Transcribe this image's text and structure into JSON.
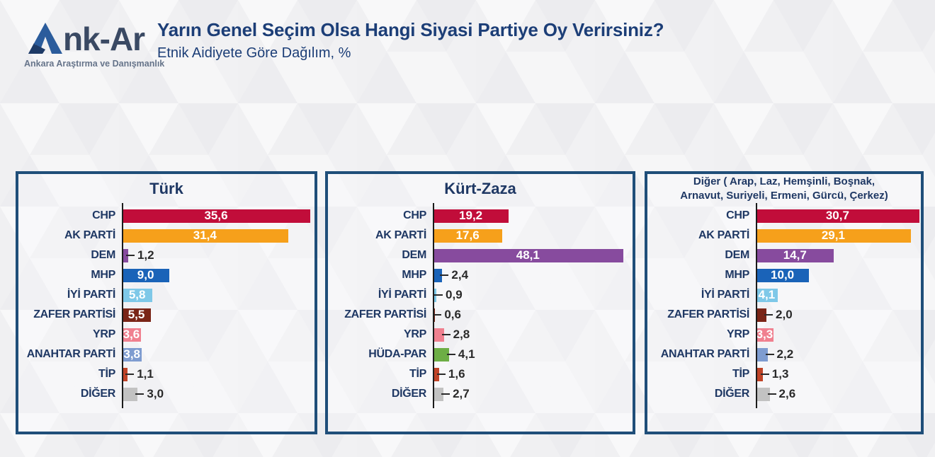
{
  "header": {
    "logo_text_rest": "nk-Ar",
    "logo_tagline": "Ankara Araştırma ve Danışmanlık",
    "title": "Yarın Genel Seçim Olsa Hangi Siyasi Partiye Oy Verirsiniz?",
    "subtitle": "Etnik Aidiyete Göre Dağılım, %"
  },
  "colors": {
    "background": "#F0F0F2",
    "panel_border": "#1F4E79",
    "title_text": "#1C3E77",
    "category_text": "#1F3864",
    "axis_line": "#1B1B1B",
    "inside_value_text": "#FFFFFF",
    "outside_value_text": "#2A2A2A",
    "parties": {
      "CHP": "#C10D3A",
      "AK PARTİ": "#F6A01B",
      "DEM": "#874B9E",
      "MHP": "#1A63B8",
      "İYİ PARTİ": "#7EC8E8",
      "ZAFER PARTİSİ": "#7A2517",
      "YRP": "#F0808F",
      "ANAHTAR PARTİ": "#7E9CD0",
      "HÜDA-PAR": "#6DAE45",
      "TİP": "#C04327",
      "DİĞER": "#C2C2C2"
    }
  },
  "chart_data": [
    {
      "type": "bar",
      "orientation": "horizontal",
      "title": "Türk",
      "title_lines": [
        "Türk"
      ],
      "unit": "%",
      "decimal_separator": ",",
      "categories": [
        "CHP",
        "AK PARTİ",
        "DEM",
        "MHP",
        "İYİ PARTİ",
        "ZAFER PARTİSİ",
        "YRP",
        "ANAHTAR PARTİ",
        "TİP",
        "DİĞER"
      ],
      "values": [
        35.6,
        31.4,
        1.2,
        9.0,
        5.8,
        5.5,
        3.6,
        3.8,
        1.1,
        3.0
      ],
      "value_labels": [
        "35,6",
        "31,4",
        "1,2",
        "9,0",
        "5,8",
        "5,5",
        "3,6",
        "3,8",
        "1,1",
        "3,0"
      ],
      "label_inside": [
        true,
        true,
        false,
        true,
        true,
        true,
        true,
        true,
        false,
        false
      ],
      "xlim": [
        0,
        36.4
      ],
      "grid": false,
      "legend": false
    },
    {
      "type": "bar",
      "orientation": "horizontal",
      "title": "Kürt-Zaza",
      "title_lines": [
        "Kürt-Zaza"
      ],
      "unit": "%",
      "decimal_separator": ",",
      "categories": [
        "CHP",
        "AK PARTİ",
        "DEM",
        "MHP",
        "İYİ PARTİ",
        "ZAFER PARTİSİ",
        "YRP",
        "HÜDA-PAR",
        "TİP",
        "DİĞER"
      ],
      "values": [
        19.2,
        17.6,
        48.1,
        2.4,
        0.9,
        0.6,
        2.8,
        4.1,
        1.6,
        2.7
      ],
      "value_labels": [
        "19,2",
        "17,6",
        "48,1",
        "2,4",
        "0,9",
        "0,6",
        "2,8",
        "4,1",
        "1,6",
        "2,7"
      ],
      "label_inside": [
        true,
        true,
        true,
        false,
        false,
        false,
        false,
        false,
        false,
        false
      ],
      "xlim": [
        0,
        50.5
      ],
      "grid": false,
      "legend": false
    },
    {
      "type": "bar",
      "orientation": "horizontal",
      "title": "Diğer ( Arap, Laz, Hemşinli, Boşnak, Arnavut, Suriyeli, Ermeni, Gürcü, Çerkez)",
      "title_lines": [
        "Diğer ( Arap, Laz, Hemşinli, Boşnak,",
        "Arnavut, Suriyeli, Ermeni, Gürcü, Çerkez)"
      ],
      "unit": "%",
      "decimal_separator": ",",
      "categories": [
        "CHP",
        "AK PARTİ",
        "DEM",
        "MHP",
        "İYİ PARTİ",
        "ZAFER PARTİSİ",
        "YRP",
        "ANAHTAR PARTİ",
        "TİP",
        "DİĞER"
      ],
      "values": [
        30.7,
        29.1,
        14.7,
        10.0,
        4.1,
        2.0,
        3.3,
        2.2,
        1.3,
        2.6
      ],
      "value_labels": [
        "30,7",
        "29,1",
        "14,7",
        "10,0",
        "4,1",
        "2,0",
        "3,3",
        "2,2",
        "1,3",
        "2,6"
      ],
      "label_inside": [
        true,
        true,
        true,
        true,
        true,
        false,
        true,
        false,
        false,
        false
      ],
      "xlim": [
        0,
        31.0
      ],
      "grid": false,
      "legend": false
    }
  ]
}
